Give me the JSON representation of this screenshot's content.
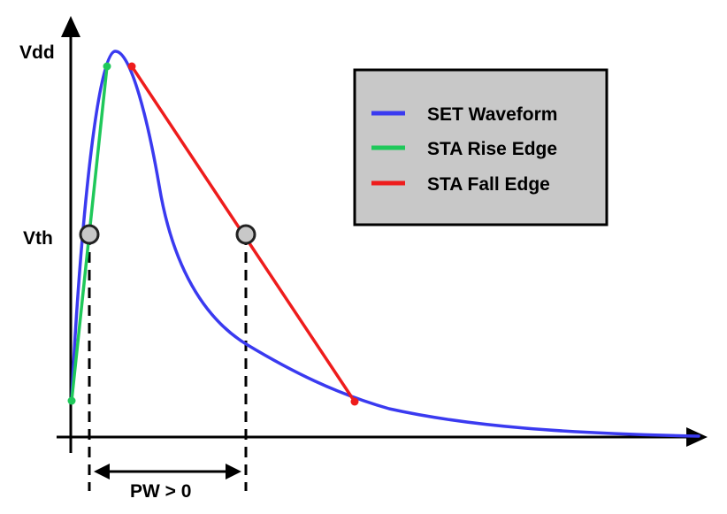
{
  "y_levels": {
    "vdd_label": "Vdd",
    "vth_label": "Vth"
  },
  "pulse_width_label": "PW > 0",
  "legend": {
    "items": [
      {
        "label": "SET Waveform",
        "color": "#3a3af0"
      },
      {
        "label": "STA Rise Edge",
        "color": "#1fc85a"
      },
      {
        "label": "STA Fall Edge",
        "color": "#ee1c1c"
      }
    ],
    "background": "#c8c8c8"
  },
  "colors": {
    "axis": "#000000",
    "set_waveform": "#3a3af0",
    "rise_edge": "#1fc85a",
    "fall_edge": "#ee1c1c",
    "threshold_marker_fill": "#c8c8c8"
  }
}
